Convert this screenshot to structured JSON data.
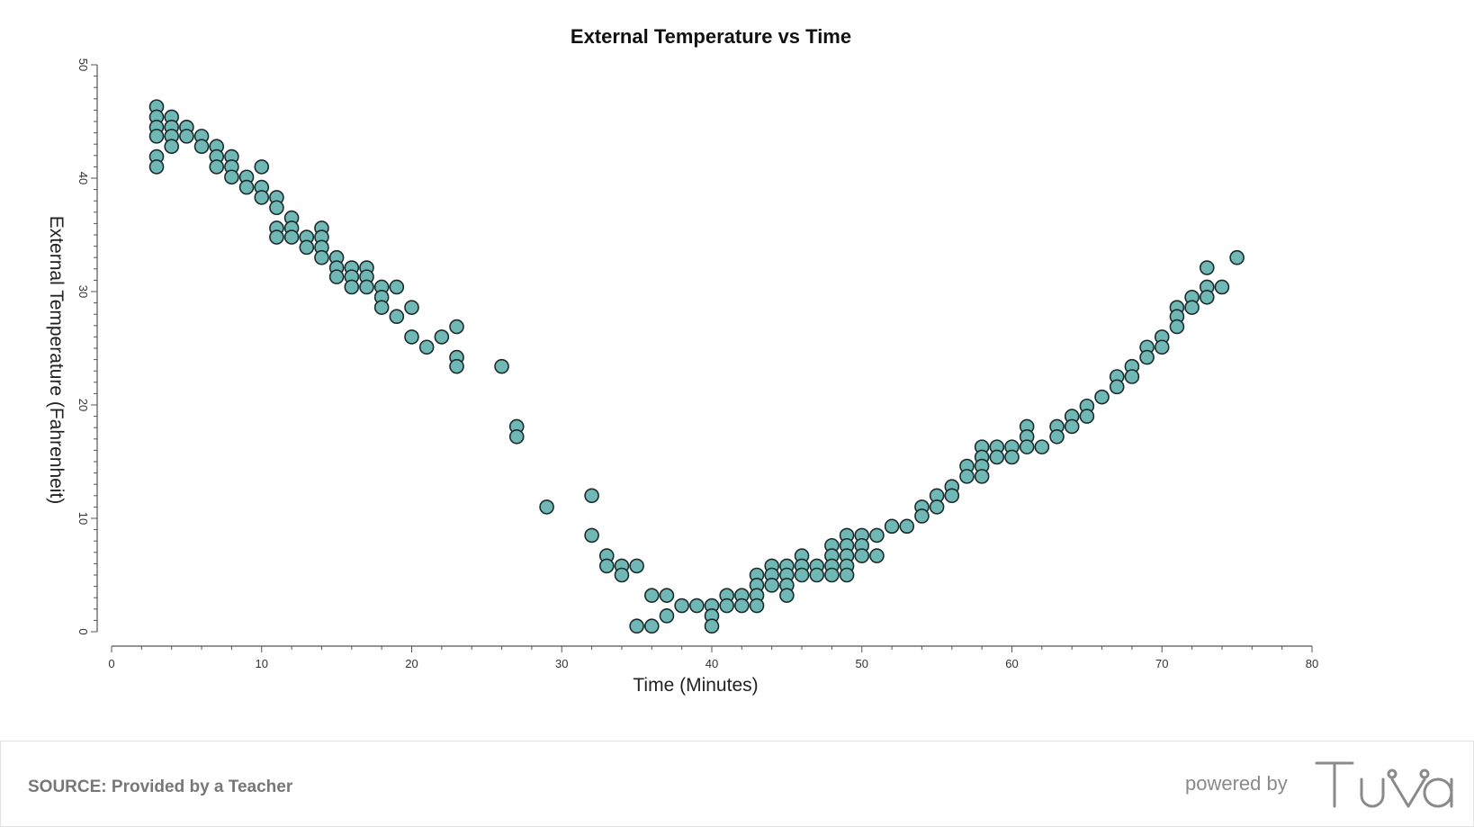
{
  "chart_data": {
    "type": "scatter",
    "title": "External Temperature vs Time",
    "xlabel": "Time (Minutes)",
    "ylabel": "External Temperature (Fahrenheit)",
    "xlim": [
      0,
      80
    ],
    "ylim": [
      0,
      50
    ],
    "x_ticks": [
      "0",
      "10",
      "20",
      "30",
      "40",
      "50",
      "60",
      "70",
      "80"
    ],
    "y_ticks": [
      "0",
      "10",
      "20",
      "30",
      "40",
      "50"
    ],
    "grid": false,
    "colors": {
      "point_fill": "#6fb8b5",
      "point_stroke": "#1c2b2b",
      "axis": "#555555"
    },
    "points": [
      [
        3,
        46.3
      ],
      [
        3,
        45.4
      ],
      [
        3,
        44.5
      ],
      [
        3,
        43.7
      ],
      [
        3,
        41.9
      ],
      [
        3,
        41
      ],
      [
        4,
        45.4
      ],
      [
        4,
        44.5
      ],
      [
        4,
        43.7
      ],
      [
        4,
        42.8
      ],
      [
        5,
        44.5
      ],
      [
        5,
        43.7
      ],
      [
        6,
        43.7
      ],
      [
        6,
        42.8
      ],
      [
        7,
        42.8
      ],
      [
        7,
        41.9
      ],
      [
        7,
        41
      ],
      [
        8,
        41.9
      ],
      [
        8,
        41
      ],
      [
        8,
        40.1
      ],
      [
        9,
        40.1
      ],
      [
        9,
        39.2
      ],
      [
        10,
        41
      ],
      [
        10,
        39.2
      ],
      [
        10,
        38.3
      ],
      [
        11,
        38.3
      ],
      [
        11,
        37.4
      ],
      [
        11,
        35.6
      ],
      [
        11,
        34.8
      ],
      [
        12,
        36.5
      ],
      [
        12,
        35.6
      ],
      [
        12,
        34.8
      ],
      [
        13,
        34.8
      ],
      [
        13,
        33.9
      ],
      [
        14,
        35.6
      ],
      [
        14,
        34.8
      ],
      [
        14,
        33.9
      ],
      [
        14,
        33
      ],
      [
        15,
        33
      ],
      [
        15,
        32.1
      ],
      [
        15,
        31.3
      ],
      [
        16,
        32.1
      ],
      [
        16,
        31.3
      ],
      [
        16,
        30.4
      ],
      [
        17,
        32.1
      ],
      [
        17,
        31.3
      ],
      [
        17,
        30.4
      ],
      [
        18,
        30.4
      ],
      [
        18,
        29.5
      ],
      [
        18,
        28.6
      ],
      [
        19,
        30.4
      ],
      [
        19,
        27.8
      ],
      [
        20,
        28.6
      ],
      [
        20,
        26
      ],
      [
        21,
        25.1
      ],
      [
        22,
        26
      ],
      [
        23,
        26.9
      ],
      [
        23,
        24.2
      ],
      [
        23,
        23.4
      ],
      [
        26,
        23.4
      ],
      [
        27,
        18.1
      ],
      [
        27,
        17.2
      ],
      [
        29,
        11
      ],
      [
        32,
        12
      ],
      [
        32,
        8.5
      ],
      [
        33,
        6.7
      ],
      [
        33,
        5.8
      ],
      [
        34,
        5.8
      ],
      [
        34,
        5
      ],
      [
        35,
        5.8
      ],
      [
        35,
        0.5
      ],
      [
        36,
        3.2
      ],
      [
        36,
        0.5
      ],
      [
        37,
        3.2
      ],
      [
        37,
        1.4
      ],
      [
        38,
        2.3
      ],
      [
        39,
        2.3
      ],
      [
        40,
        2.3
      ],
      [
        40,
        1.4
      ],
      [
        40,
        0.5
      ],
      [
        41,
        3.2
      ],
      [
        41,
        2.3
      ],
      [
        42,
        3.2
      ],
      [
        42,
        2.3
      ],
      [
        43,
        5
      ],
      [
        43,
        4.1
      ],
      [
        43,
        3.2
      ],
      [
        43,
        2.3
      ],
      [
        44,
        5.8
      ],
      [
        44,
        5
      ],
      [
        44,
        4.1
      ],
      [
        45,
        5.8
      ],
      [
        45,
        5
      ],
      [
        45,
        4.1
      ],
      [
        45,
        3.2
      ],
      [
        46,
        6.7
      ],
      [
        46,
        5.8
      ],
      [
        46,
        5
      ],
      [
        47,
        5.8
      ],
      [
        47,
        5
      ],
      [
        48,
        7.6
      ],
      [
        48,
        6.7
      ],
      [
        48,
        5.8
      ],
      [
        48,
        5
      ],
      [
        49,
        8.5
      ],
      [
        49,
        7.6
      ],
      [
        49,
        6.7
      ],
      [
        49,
        5.8
      ],
      [
        49,
        5
      ],
      [
        50,
        8.5
      ],
      [
        50,
        7.6
      ],
      [
        50,
        6.7
      ],
      [
        51,
        8.5
      ],
      [
        51,
        6.7
      ],
      [
        52,
        9.3
      ],
      [
        53,
        9.3
      ],
      [
        54,
        11
      ],
      [
        54,
        10.2
      ],
      [
        55,
        12
      ],
      [
        55,
        11
      ],
      [
        56,
        12.8
      ],
      [
        56,
        12
      ],
      [
        57,
        14.6
      ],
      [
        57,
        13.7
      ],
      [
        58,
        16.3
      ],
      [
        58,
        15.4
      ],
      [
        58,
        14.6
      ],
      [
        58,
        13.7
      ],
      [
        59,
        16.3
      ],
      [
        59,
        15.4
      ],
      [
        60,
        16.3
      ],
      [
        60,
        15.4
      ],
      [
        61,
        18.1
      ],
      [
        61,
        17.2
      ],
      [
        61,
        16.3
      ],
      [
        62,
        16.3
      ],
      [
        63,
        18.1
      ],
      [
        63,
        17.2
      ],
      [
        64,
        19
      ],
      [
        64,
        18.1
      ],
      [
        65,
        19.9
      ],
      [
        65,
        19
      ],
      [
        66,
        20.7
      ],
      [
        67,
        22.5
      ],
      [
        67,
        21.6
      ],
      [
        68,
        23.4
      ],
      [
        68,
        22.5
      ],
      [
        69,
        25.1
      ],
      [
        69,
        24.2
      ],
      [
        70,
        26
      ],
      [
        70,
        25.1
      ],
      [
        71,
        28.6
      ],
      [
        71,
        27.8
      ],
      [
        71,
        26.9
      ],
      [
        72,
        29.5
      ],
      [
        72,
        28.6
      ],
      [
        73,
        32.1
      ],
      [
        73,
        30.4
      ],
      [
        73,
        29.5
      ],
      [
        74,
        30.4
      ],
      [
        75,
        33
      ]
    ]
  },
  "footer": {
    "source_label": "SOURCE:",
    "source_text": "Provided by a Teacher",
    "powered_by": "powered by",
    "logo_text": "Tuva"
  }
}
